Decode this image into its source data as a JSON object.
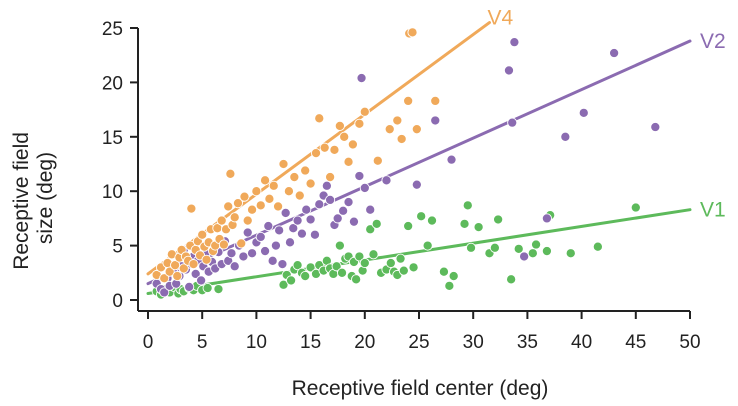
{
  "chart_data": {
    "type": "scatter",
    "title": "",
    "xlabel": "Receptive field center (deg)",
    "ylabel_lines": [
      "Receptive field",
      "size (deg)"
    ],
    "xlim": [
      0,
      50
    ],
    "ylim": [
      0,
      25
    ],
    "xticks": [
      0,
      5,
      10,
      15,
      20,
      25,
      30,
      35,
      40,
      45,
      50
    ],
    "yticks": [
      0,
      5,
      10,
      15,
      20,
      25
    ],
    "grid": false,
    "series": [
      {
        "name": "V1",
        "color": "#5dba5b",
        "fit": [
          [
            0,
            0.6
          ],
          [
            50,
            8.3
          ]
        ],
        "points": [
          [
            0.8,
            0.8
          ],
          [
            1.2,
            0.5
          ],
          [
            1.5,
            1.0
          ],
          [
            2.0,
            0.7
          ],
          [
            2.4,
            1.2
          ],
          [
            2.8,
            0.6
          ],
          [
            3.0,
            1.0
          ],
          [
            3.3,
            0.8
          ],
          [
            3.8,
            1.1
          ],
          [
            4.2,
            0.9
          ],
          [
            4.5,
            1.3
          ],
          [
            5.0,
            0.9
          ],
          [
            5.5,
            1.1
          ],
          [
            6.5,
            1.0
          ],
          [
            12.5,
            1.4
          ],
          [
            12.8,
            2.3
          ],
          [
            13.2,
            1.8
          ],
          [
            13.5,
            2.8
          ],
          [
            13.8,
            3.2
          ],
          [
            14.2,
            2.5
          ],
          [
            14.5,
            2.2
          ],
          [
            15.0,
            3.0
          ],
          [
            15.5,
            2.4
          ],
          [
            15.8,
            3.2
          ],
          [
            16.2,
            2.7
          ],
          [
            16.5,
            3.6
          ],
          [
            16.8,
            2.9
          ],
          [
            17.1,
            2.4
          ],
          [
            17.4,
            3.1
          ],
          [
            17.7,
            5.0
          ],
          [
            17.9,
            2.5
          ],
          [
            18.2,
            3.8
          ],
          [
            18.5,
            4.0
          ],
          [
            18.8,
            2.2
          ],
          [
            19.0,
            3.5
          ],
          [
            19.2,
            1.9
          ],
          [
            19.5,
            4.0
          ],
          [
            19.8,
            2.7
          ],
          [
            20.0,
            3.4
          ],
          [
            20.5,
            6.5
          ],
          [
            20.8,
            4.2
          ],
          [
            21.1,
            7.0
          ],
          [
            21.5,
            2.5
          ],
          [
            22.0,
            2.8
          ],
          [
            22.4,
            3.4
          ],
          [
            22.7,
            2.6
          ],
          [
            23.0,
            2.3
          ],
          [
            23.3,
            3.8
          ],
          [
            23.6,
            2.7
          ],
          [
            24.0,
            6.8
          ],
          [
            24.5,
            3.0
          ],
          [
            25.2,
            7.7
          ],
          [
            25.8,
            5.0
          ],
          [
            26.2,
            7.3
          ],
          [
            27.3,
            2.6
          ],
          [
            27.8,
            1.3
          ],
          [
            28.2,
            2.2
          ],
          [
            29.5,
            8.7
          ],
          [
            29.2,
            7.0
          ],
          [
            29.8,
            4.8
          ],
          [
            30.5,
            6.7
          ],
          [
            31.5,
            4.3
          ],
          [
            32.3,
            7.4
          ],
          [
            32.0,
            4.8
          ],
          [
            33.5,
            1.9
          ],
          [
            34.2,
            4.7
          ],
          [
            35.5,
            4.3
          ],
          [
            35.8,
            5.1
          ],
          [
            36.8,
            4.5
          ],
          [
            37.1,
            7.8
          ],
          [
            39.0,
            4.3
          ],
          [
            41.5,
            4.9
          ],
          [
            45.0,
            8.5
          ]
        ]
      },
      {
        "name": "V2",
        "color": "#8b6bb1",
        "fit": [
          [
            0,
            1.5
          ],
          [
            50,
            23.8
          ]
        ],
        "points": [
          [
            0.8,
            1.5
          ],
          [
            1.2,
            1.0
          ],
          [
            1.5,
            0.7
          ],
          [
            1.8,
            2.0
          ],
          [
            2.0,
            1.3
          ],
          [
            2.3,
            2.6
          ],
          [
            2.6,
            1.5
          ],
          [
            2.9,
            2.2
          ],
          [
            3.1,
            3.1
          ],
          [
            3.3,
            4.6
          ],
          [
            3.5,
            2.8
          ],
          [
            3.8,
            1.2
          ],
          [
            4.0,
            3.3
          ],
          [
            4.2,
            4.0
          ],
          [
            4.4,
            2.4
          ],
          [
            4.6,
            3.6
          ],
          [
            4.9,
            1.8
          ],
          [
            5.1,
            3.1
          ],
          [
            5.3,
            4.3
          ],
          [
            5.6,
            2.6
          ],
          [
            5.9,
            3.5
          ],
          [
            6.2,
            2.9
          ],
          [
            6.5,
            4.4
          ],
          [
            6.8,
            3.3
          ],
          [
            7.1,
            5.4
          ],
          [
            7.4,
            3.6
          ],
          [
            7.7,
            4.3
          ],
          [
            8.0,
            3.1
          ],
          [
            8.4,
            5.0
          ],
          [
            8.8,
            4.0
          ],
          [
            9.2,
            6.2
          ],
          [
            9.6,
            4.3
          ],
          [
            10.0,
            5.3
          ],
          [
            10.4,
            5.8
          ],
          [
            10.8,
            4.5
          ],
          [
            11.1,
            6.8
          ],
          [
            11.5,
            3.6
          ],
          [
            11.8,
            5.0
          ],
          [
            12.1,
            6.4
          ],
          [
            12.4,
            3.3
          ],
          [
            12.7,
            8.0
          ],
          [
            13.1,
            5.3
          ],
          [
            13.4,
            6.6
          ],
          [
            13.8,
            7.3
          ],
          [
            14.2,
            6.1
          ],
          [
            14.6,
            8.3
          ],
          [
            15.0,
            7.4
          ],
          [
            15.4,
            6.0
          ],
          [
            15.8,
            8.8
          ],
          [
            16.2,
            9.6
          ],
          [
            16.5,
            10.5
          ],
          [
            16.8,
            9.2
          ],
          [
            17.2,
            6.9
          ],
          [
            17.5,
            7.5
          ],
          [
            18.0,
            8.2
          ],
          [
            18.5,
            9.0
          ],
          [
            19.0,
            7.2
          ],
          [
            19.5,
            11.4
          ],
          [
            19.7,
            20.4
          ],
          [
            20.0,
            10.3
          ],
          [
            20.5,
            8.3
          ],
          [
            22.0,
            11.0
          ],
          [
            24.8,
            10.6
          ],
          [
            26.5,
            16.5
          ],
          [
            28.0,
            12.9
          ],
          [
            33.3,
            21.1
          ],
          [
            33.6,
            16.3
          ],
          [
            33.8,
            23.7
          ],
          [
            34.7,
            4.0
          ],
          [
            36.8,
            7.5
          ],
          [
            38.5,
            15.0
          ],
          [
            40.2,
            17.2
          ],
          [
            43.0,
            22.7
          ],
          [
            46.8,
            15.9
          ]
        ]
      },
      {
        "name": "V4",
        "color": "#f0a95a",
        "fit": [
          [
            0,
            2.4
          ],
          [
            31.5,
            25.5
          ]
        ],
        "points": [
          [
            0.8,
            2.3
          ],
          [
            1.2,
            3.0
          ],
          [
            1.5,
            2.0
          ],
          [
            1.8,
            3.4
          ],
          [
            2.0,
            2.6
          ],
          [
            2.2,
            4.2
          ],
          [
            2.5,
            3.2
          ],
          [
            2.7,
            2.2
          ],
          [
            2.9,
            3.9
          ],
          [
            3.1,
            4.6
          ],
          [
            3.3,
            2.9
          ],
          [
            3.5,
            4.0
          ],
          [
            3.7,
            3.6
          ],
          [
            3.9,
            5.0
          ],
          [
            4.0,
            8.4
          ],
          [
            4.2,
            3.3
          ],
          [
            4.4,
            4.6
          ],
          [
            4.6,
            5.4
          ],
          [
            4.8,
            4.1
          ],
          [
            5.0,
            6.0
          ],
          [
            5.2,
            4.9
          ],
          [
            5.4,
            3.7
          ],
          [
            5.6,
            5.3
          ],
          [
            5.8,
            6.5
          ],
          [
            6.0,
            4.5
          ],
          [
            6.2,
            5.0
          ],
          [
            6.4,
            6.6
          ],
          [
            6.6,
            5.6
          ],
          [
            6.8,
            7.3
          ],
          [
            7.0,
            5.1
          ],
          [
            7.2,
            6.5
          ],
          [
            7.4,
            8.6
          ],
          [
            7.6,
            11.6
          ],
          [
            7.8,
            6.9
          ],
          [
            8.0,
            7.6
          ],
          [
            8.3,
            8.9
          ],
          [
            8.6,
            5.2
          ],
          [
            8.9,
            9.5
          ],
          [
            9.2,
            7.3
          ],
          [
            9.6,
            8.3
          ],
          [
            10.0,
            10.0
          ],
          [
            10.4,
            8.7
          ],
          [
            10.8,
            11.0
          ],
          [
            11.2,
            9.3
          ],
          [
            11.6,
            10.5
          ],
          [
            12.0,
            8.6
          ],
          [
            12.5,
            12.5
          ],
          [
            13.0,
            10.0
          ],
          [
            13.5,
            11.3
          ],
          [
            14.0,
            9.6
          ],
          [
            14.5,
            11.9
          ],
          [
            15.0,
            10.7
          ],
          [
            15.5,
            13.5
          ],
          [
            15.8,
            16.7
          ],
          [
            16.3,
            14.0
          ],
          [
            16.8,
            11.3
          ],
          [
            17.2,
            13.8
          ],
          [
            17.7,
            16.0
          ],
          [
            18.1,
            15.0
          ],
          [
            18.5,
            12.7
          ],
          [
            18.9,
            14.3
          ],
          [
            19.5,
            16.2
          ],
          [
            20.0,
            17.3
          ],
          [
            21.2,
            12.8
          ],
          [
            22.3,
            15.7
          ],
          [
            23.0,
            16.5
          ],
          [
            23.4,
            14.8
          ],
          [
            24.0,
            18.3
          ],
          [
            24.1,
            24.5
          ],
          [
            24.4,
            24.6
          ],
          [
            24.8,
            15.7
          ],
          [
            26.5,
            18.3
          ]
        ]
      }
    ]
  }
}
